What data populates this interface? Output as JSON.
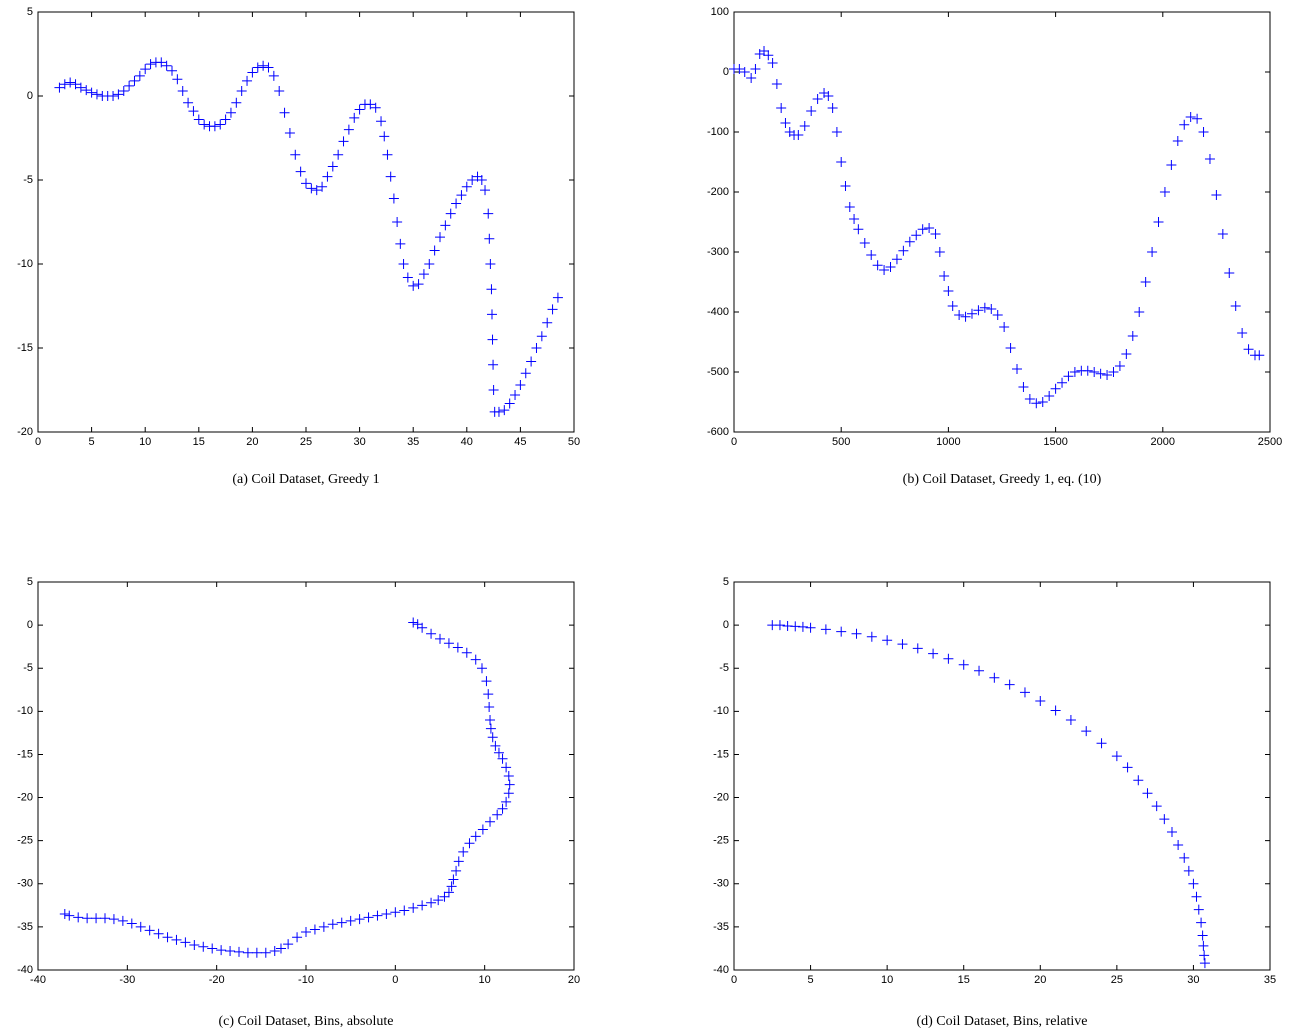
{
  "chart_data": [
    {
      "type": "scatter",
      "caption": "(a) Coil Dataset, Greedy 1",
      "color": "#0000ff",
      "marker": "+",
      "x": [
        2,
        2.5,
        3,
        3.5,
        4,
        4.5,
        5,
        5.5,
        6,
        6.5,
        7,
        7.5,
        8,
        8.5,
        9,
        9.5,
        10,
        10.5,
        11,
        11.5,
        12,
        12.5,
        13,
        13.5,
        14,
        14.5,
        15,
        15.5,
        16,
        16.5,
        17,
        17.5,
        18,
        18.5,
        19,
        19.5,
        20,
        20.5,
        21,
        21.5,
        22,
        22.5,
        23,
        23.5,
        24,
        24.5,
        25,
        25.5,
        26,
        26.5,
        27,
        27.5,
        28,
        28.5,
        29,
        29.5,
        30,
        30.5,
        31,
        31.5,
        32,
        32.3,
        32.6,
        32.9,
        33.2,
        33.5,
        33.8,
        34.1,
        34.5,
        35,
        35.5,
        36,
        36.5,
        37,
        37.5,
        38,
        38.5,
        39,
        39.5,
        40,
        40.5,
        41,
        41.4,
        41.7,
        42,
        42.1,
        42.2,
        42.3,
        42.35,
        42.4,
        42.45,
        42.5,
        42.6,
        43,
        43.5,
        44,
        44.5,
        45,
        45.5,
        46,
        46.5,
        47,
        47.5,
        48,
        48.5
      ],
      "y": [
        0.5,
        0.7,
        0.8,
        0.7,
        0.5,
        0.35,
        0.2,
        0.1,
        0,
        0,
        0,
        0.1,
        0.3,
        0.6,
        0.9,
        1.2,
        1.6,
        1.9,
        2,
        2,
        1.8,
        1.5,
        1,
        0.3,
        -0.4,
        -0.9,
        -1.4,
        -1.7,
        -1.8,
        -1.8,
        -1.7,
        -1.4,
        -1,
        -0.4,
        0.3,
        0.9,
        1.4,
        1.7,
        1.8,
        1.7,
        1.2,
        0.3,
        -1,
        -2.2,
        -3.5,
        -4.5,
        -5.2,
        -5.5,
        -5.6,
        -5.4,
        -4.8,
        -4.2,
        -3.5,
        -2.7,
        -2,
        -1.3,
        -0.8,
        -0.5,
        -0.5,
        -0.7,
        -1.5,
        -2.4,
        -3.5,
        -4.8,
        -6.1,
        -7.5,
        -8.8,
        -10,
        -10.8,
        -11.3,
        -11.2,
        -10.6,
        -10,
        -9.2,
        -8.4,
        -7.7,
        -7,
        -6.4,
        -5.9,
        -5.4,
        -5,
        -4.8,
        -5,
        -5.6,
        -7,
        -8.5,
        -10,
        -11.5,
        -13,
        -14.5,
        -16,
        -17.5,
        -18.8,
        -18.8,
        -18.7,
        -18.3,
        -17.8,
        -17.2,
        -16.5,
        -15.8,
        -15,
        -14.3,
        -13.5,
        -12.7,
        -12
      ],
      "xlim": [
        0,
        50
      ],
      "ylim": [
        -20,
        5
      ],
      "xticks": [
        0,
        5,
        10,
        15,
        20,
        25,
        30,
        35,
        40,
        45,
        50
      ],
      "yticks": [
        -20,
        -15,
        -10,
        -5,
        0,
        5
      ]
    },
    {
      "type": "scatter",
      "caption": "(b) Coil Dataset, Greedy 1, eq. (10)",
      "color": "#0000ff",
      "marker": "+",
      "x": [
        0,
        25,
        50,
        80,
        100,
        120,
        140,
        160,
        180,
        200,
        220,
        240,
        260,
        280,
        300,
        330,
        360,
        390,
        420,
        440,
        460,
        480,
        500,
        520,
        540,
        560,
        580,
        610,
        640,
        670,
        700,
        730,
        760,
        790,
        820,
        850,
        880,
        910,
        940,
        960,
        980,
        1000,
        1020,
        1050,
        1080,
        1110,
        1140,
        1170,
        1200,
        1230,
        1260,
        1290,
        1320,
        1350,
        1380,
        1410,
        1440,
        1470,
        1500,
        1530,
        1560,
        1590,
        1620,
        1650,
        1680,
        1710,
        1740,
        1770,
        1800,
        1830,
        1860,
        1890,
        1920,
        1950,
        1980,
        2010,
        2040,
        2070,
        2100,
        2130,
        2160,
        2190,
        2220,
        2250,
        2280,
        2310,
        2340,
        2370,
        2400,
        2430,
        2450
      ],
      "y": [
        5,
        5,
        0,
        -10,
        5,
        30,
        35,
        28,
        15,
        -20,
        -60,
        -85,
        -100,
        -105,
        -105,
        -90,
        -65,
        -45,
        -35,
        -40,
        -60,
        -100,
        -150,
        -190,
        -225,
        -245,
        -262,
        -285,
        -305,
        -322,
        -330,
        -325,
        -312,
        -298,
        -283,
        -272,
        -262,
        -260,
        -270,
        -300,
        -340,
        -365,
        -390,
        -405,
        -408,
        -403,
        -397,
        -393,
        -395,
        -405,
        -425,
        -460,
        -495,
        -525,
        -545,
        -552,
        -550,
        -540,
        -528,
        -518,
        -507,
        -500,
        -498,
        -498,
        -500,
        -503,
        -505,
        -500,
        -490,
        -470,
        -440,
        -400,
        -350,
        -300,
        -250,
        -200,
        -155,
        -115,
        -88,
        -75,
        -78,
        -100,
        -145,
        -205,
        -270,
        -335,
        -390,
        -435,
        -462,
        -472,
        -472
      ],
      "xlim": [
        0,
        2500
      ],
      "ylim": [
        -600,
        100
      ],
      "xticks": [
        0,
        500,
        1000,
        1500,
        2000,
        2500
      ],
      "yticks": [
        -600,
        -500,
        -400,
        -300,
        -200,
        -100,
        0,
        100
      ]
    },
    {
      "type": "scatter",
      "caption": "(c) Coil Dataset, Bins, absolute",
      "color": "#0000ff",
      "marker": "+",
      "x": [
        2,
        2.5,
        3,
        4,
        5,
        6,
        7,
        8,
        9,
        9.7,
        10.2,
        10.4,
        10.5,
        10.6,
        10.7,
        10.9,
        11.2,
        11.6,
        12,
        12.4,
        12.7,
        12.8,
        12.7,
        12.4,
        12,
        11.4,
        10.6,
        9.8,
        9,
        8.3,
        7.6,
        7.1,
        6.8,
        6.5,
        6.3,
        6,
        5.5,
        4.8,
        4,
        3,
        2,
        1,
        0,
        -1,
        -2,
        -3,
        -4,
        -5,
        -6,
        -7,
        -8,
        -9,
        -10,
        -11,
        -12,
        -12.8,
        -13.5,
        -14.5,
        -15.5,
        -16.5,
        -17.5,
        -18.5,
        -19.5,
        -20.5,
        -21.5,
        -22.5,
        -23.5,
        -24.5,
        -25.5,
        -26.5,
        -27.5,
        -28.5,
        -29.5,
        -30.5,
        -31.5,
        -32.5,
        -33.5,
        -34.5,
        -35.5,
        -36.5,
        -37
      ],
      "y": [
        0.3,
        0.1,
        -0.3,
        -1,
        -1.6,
        -2.1,
        -2.6,
        -3.2,
        -4,
        -5,
        -6.5,
        -8,
        -9.5,
        -11,
        -12,
        -13,
        -14,
        -14.8,
        -15.5,
        -16.5,
        -17.5,
        -18.5,
        -19.5,
        -20.5,
        -21.3,
        -22,
        -22.8,
        -23.7,
        -24.5,
        -25.3,
        -26.3,
        -27.4,
        -28.5,
        -29.5,
        -30.3,
        -31,
        -31.5,
        -31.9,
        -32.2,
        -32.5,
        -32.8,
        -33.1,
        -33.3,
        -33.5,
        -33.7,
        -33.9,
        -34.1,
        -34.3,
        -34.5,
        -34.7,
        -35,
        -35.3,
        -35.6,
        -36.2,
        -37,
        -37.5,
        -37.8,
        -38,
        -38,
        -38,
        -37.9,
        -37.8,
        -37.7,
        -37.5,
        -37.3,
        -37.1,
        -36.8,
        -36.5,
        -36.2,
        -35.8,
        -35.4,
        -35,
        -34.6,
        -34.3,
        -34.1,
        -34,
        -34,
        -34,
        -33.9,
        -33.7,
        -33.5
      ],
      "xlim": [
        -40,
        20
      ],
      "ylim": [
        -40,
        5
      ],
      "xticks": [
        -40,
        -30,
        -20,
        -10,
        0,
        10,
        20
      ],
      "yticks": [
        -40,
        -35,
        -30,
        -25,
        -20,
        -15,
        -10,
        -5,
        0,
        5
      ]
    },
    {
      "type": "scatter",
      "caption": "(d) Coil Dataset, Bins, relative",
      "color": "#0000ff",
      "marker": "+",
      "x": [
        2.5,
        3,
        3.5,
        4,
        4.5,
        5,
        6,
        7,
        8,
        9,
        10,
        11,
        12,
        13,
        14,
        15,
        16,
        17,
        18,
        19,
        20,
        21,
        22,
        23,
        24,
        25,
        25.7,
        26.4,
        27,
        27.6,
        28.1,
        28.6,
        29,
        29.4,
        29.7,
        30,
        30.2,
        30.35,
        30.5,
        30.6,
        30.65,
        30.7,
        30.75
      ],
      "y": [
        0,
        0,
        -0.1,
        -0.15,
        -0.2,
        -0.3,
        -0.5,
        -0.75,
        -1,
        -1.35,
        -1.75,
        -2.2,
        -2.7,
        -3.3,
        -3.9,
        -4.6,
        -5.3,
        -6.1,
        -6.9,
        -7.8,
        -8.8,
        -9.9,
        -11,
        -12.3,
        -13.7,
        -15.2,
        -16.5,
        -18,
        -19.5,
        -21,
        -22.5,
        -24,
        -25.5,
        -27,
        -28.5,
        -30,
        -31.5,
        -33,
        -34.5,
        -36,
        -37.2,
        -38.3,
        -39.2
      ],
      "xlim": [
        0,
        35
      ],
      "ylim": [
        -40,
        5
      ],
      "xticks": [
        0,
        5,
        10,
        15,
        20,
        25,
        30,
        35
      ],
      "yticks": [
        -40,
        -35,
        -30,
        -25,
        -20,
        -15,
        -10,
        -5,
        0,
        5
      ]
    }
  ]
}
